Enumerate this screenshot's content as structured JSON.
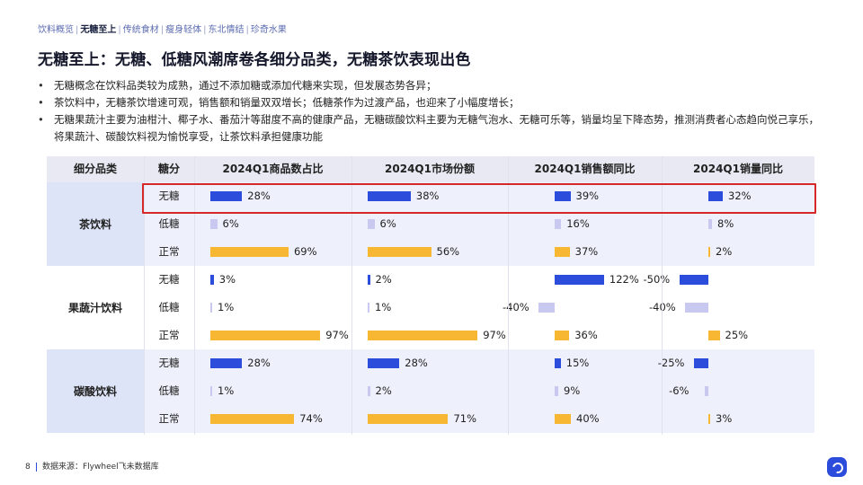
{
  "nav": {
    "items": [
      "饮料概览",
      "无糖至上",
      "传统食材",
      "瘦身轻体",
      "东北情结",
      "珍奇水果"
    ],
    "active_index": 1
  },
  "title": "无糖至上：无糖、低糖风潮席卷各细分品类，无糖茶饮表现出色",
  "bullets": [
    "无糖概念在饮料品类较为成熟，通过不添加糖或添加代糖来实现，但发展态势各异；",
    "茶饮料中，无糖茶饮增速可观，销售额和销量双双增长；低糖茶作为过渡产品，也迎来了小幅度增长；",
    "无糖果蔬汁主要为油柑汁、椰子水、番茄汁等甜度不高的健康产品，无糖碳酸饮料主要为无糖气泡水、无糖可乐等，销量均呈下降态势，推测消费者心态趋向悦己享乐，将果蔬汁、碳酸饮料视为愉悦享受，让茶饮料承担健康功能"
  ],
  "table": {
    "headers": [
      "细分品类",
      "糖分",
      "2024Q1商品数占比",
      "2024Q1市场份额",
      "2024Q1销售额同比",
      "2024Q1销量同比"
    ],
    "groups": [
      {
        "category": "茶饮料",
        "rows": [
          {
            "sugar": "无糖",
            "count_share": 28,
            "market_share": 38,
            "sales_yoy": 39,
            "volume_yoy": 32
          },
          {
            "sugar": "低糖",
            "count_share": 6,
            "market_share": 6,
            "sales_yoy": 16,
            "volume_yoy": 8
          },
          {
            "sugar": "正常",
            "count_share": 69,
            "market_share": 56,
            "sales_yoy": 37,
            "volume_yoy": 2
          }
        ]
      },
      {
        "category": "果蔬汁饮料",
        "rows": [
          {
            "sugar": "无糖",
            "count_share": 3,
            "market_share": 2,
            "sales_yoy": 122,
            "volume_yoy": -50
          },
          {
            "sugar": "低糖",
            "count_share": 1,
            "market_share": 1,
            "sales_yoy": -40,
            "volume_yoy": -40
          },
          {
            "sugar": "正常",
            "count_share": 97,
            "market_share": 97,
            "sales_yoy": 36,
            "volume_yoy": 25
          }
        ]
      },
      {
        "category": "碳酸饮料",
        "rows": [
          {
            "sugar": "无糖",
            "count_share": 28,
            "market_share": 28,
            "sales_yoy": 15,
            "volume_yoy": -25
          },
          {
            "sugar": "低糖",
            "count_share": 1,
            "market_share": 2,
            "sales_yoy": 9,
            "volume_yoy": -6
          },
          {
            "sugar": "正常",
            "count_share": 74,
            "market_share": 71,
            "sales_yoy": 40,
            "volume_yoy": 3
          }
        ]
      }
    ],
    "value_suffix": "%",
    "colors": {
      "无糖": "#2c4cdc",
      "低糖": "#c9c8f0",
      "正常": "#f7b733"
    },
    "highlighted_row": "茶饮料-无糖"
  },
  "footer": {
    "page_number": "8",
    "source": "数据来源：Flywheel飞未数据库"
  },
  "colors": {
    "accent": "#2c4cdc",
    "highlight_border": "#d62828",
    "band": "#eef1fb"
  }
}
